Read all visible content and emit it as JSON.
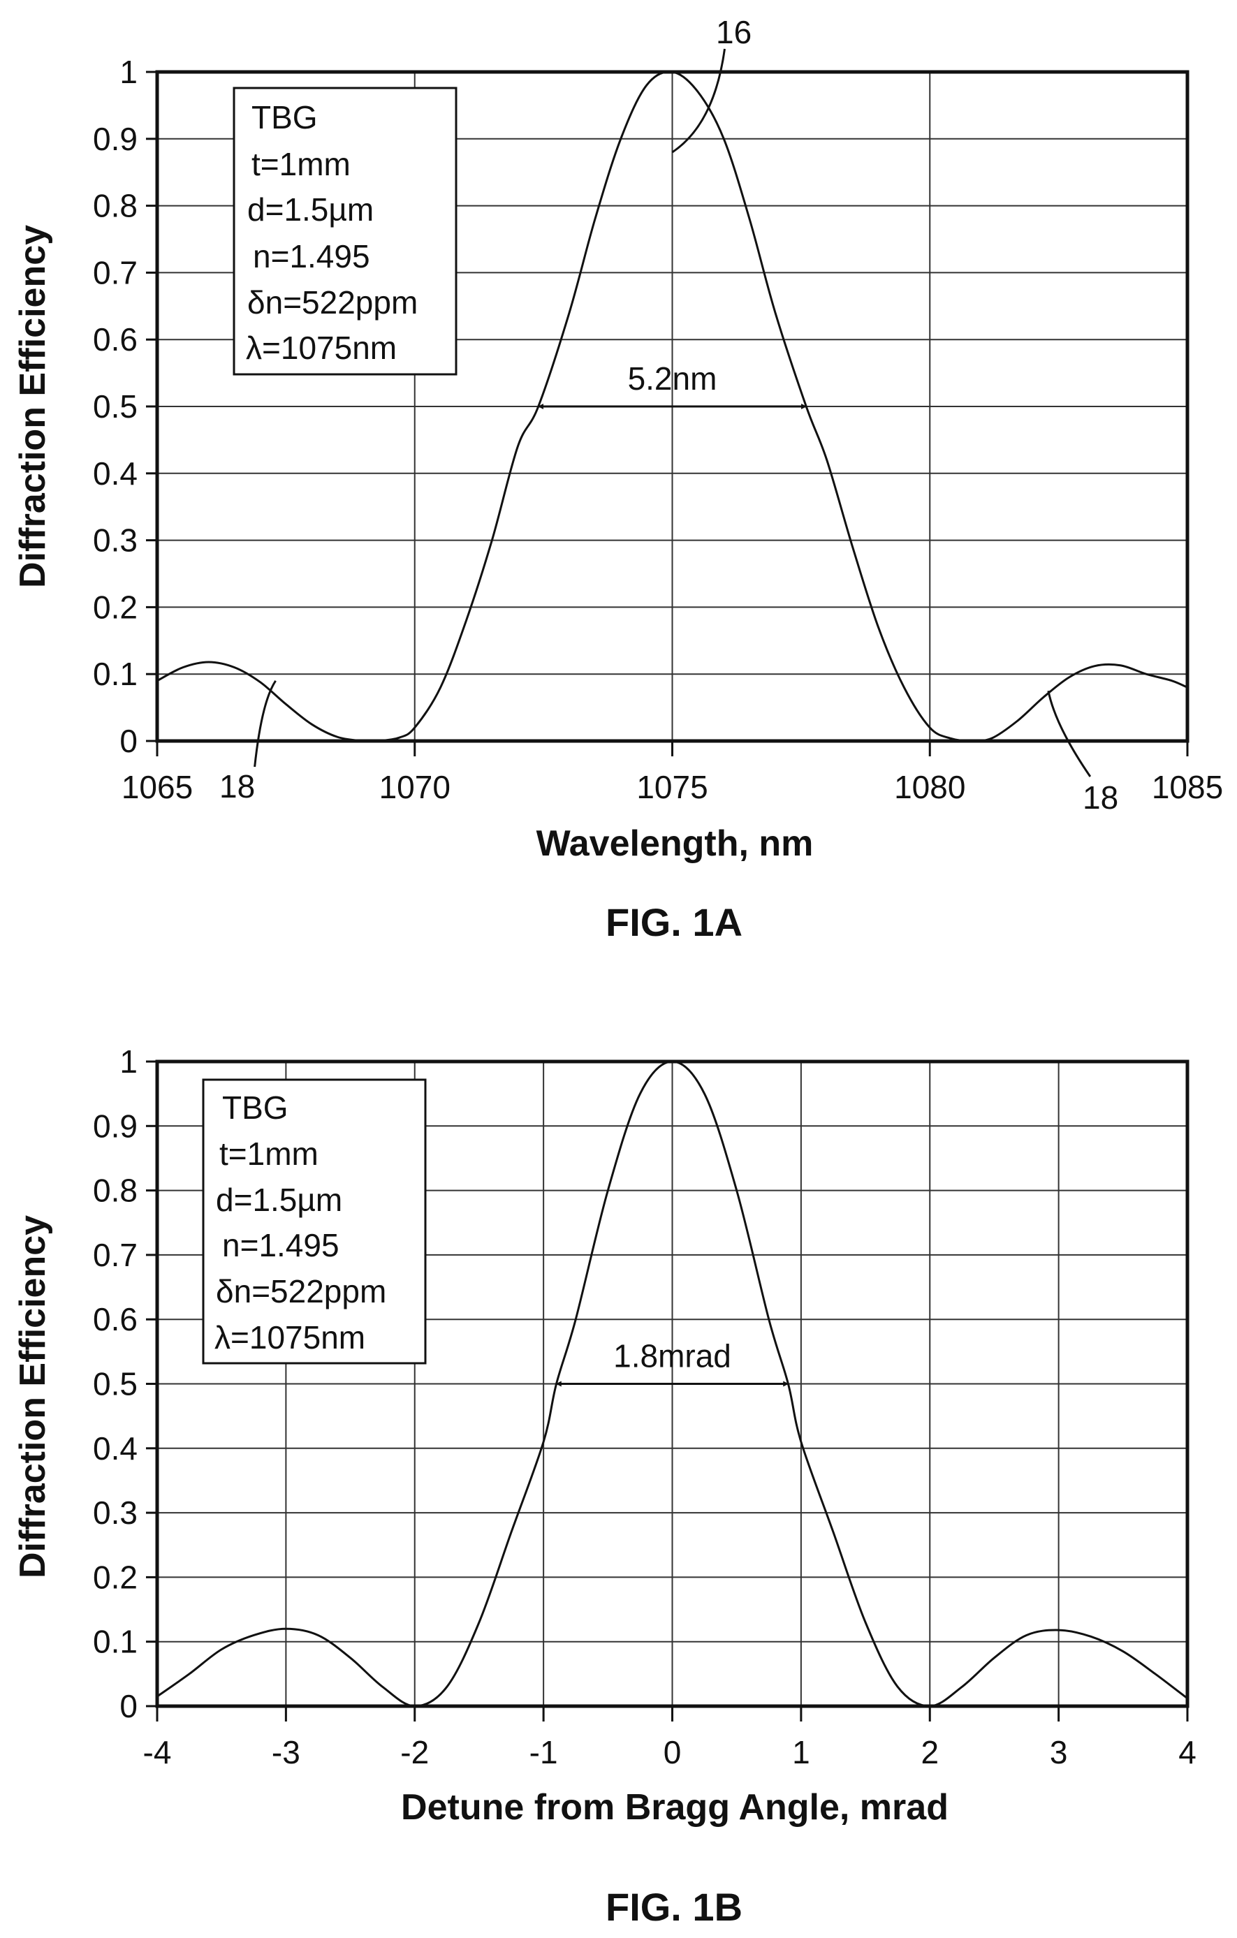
{
  "chart_data": [
    {
      "id": "fig1a",
      "type": "line",
      "figure_label": "FIG. 1A",
      "xlabel": "Wavelength, nm",
      "ylabel": "Diffraction Efficiency",
      "xlim": [
        1065,
        1085
      ],
      "ylim": [
        0,
        1
      ],
      "xticks": [
        1065,
        1070,
        1075,
        1080,
        1085
      ],
      "yticks": [
        0,
        0.1,
        0.2,
        0.3,
        0.4,
        0.5,
        0.6,
        0.7,
        0.8,
        0.9,
        1
      ],
      "grid": true,
      "legend_lines": [
        "TBG",
        "t=1mm",
        "d=1.5µm",
        "n=1.495",
        "δn=522ppm",
        "λ=1075nm"
      ],
      "series": [
        {
          "x": [
            1065,
            1065.5,
            1066,
            1066.5,
            1067,
            1067.5,
            1068,
            1068.5,
            1069,
            1069.3,
            1069.7,
            1070,
            1070.5,
            1071,
            1071.5,
            1072,
            1072.4,
            1073,
            1073.5,
            1074,
            1074.5,
            1075,
            1075.5,
            1076,
            1076.5,
            1077,
            1077.6,
            1078,
            1078.5,
            1079,
            1079.5,
            1080,
            1080.4,
            1080.8,
            1081.2,
            1081.7,
            1082.2,
            1082.7,
            1083.2,
            1083.7,
            1084.2,
            1084.7,
            1085
          ],
          "values": [
            0.09,
            0.11,
            0.118,
            0.11,
            0.088,
            0.055,
            0.025,
            0.006,
            0.0,
            0.0,
            0.005,
            0.02,
            0.08,
            0.18,
            0.3,
            0.44,
            0.5,
            0.64,
            0.78,
            0.9,
            0.98,
            1.0,
            0.97,
            0.9,
            0.78,
            0.64,
            0.5,
            0.42,
            0.29,
            0.17,
            0.08,
            0.02,
            0.004,
            0.0,
            0.004,
            0.03,
            0.065,
            0.095,
            0.112,
            0.113,
            0.1,
            0.09,
            0.08
          ]
        }
      ],
      "annotations": {
        "fwhm_label": "5.2nm",
        "fwhm_from": 1072.4,
        "fwhm_to": 1077.6,
        "fwhm_y": 0.5,
        "peak_ref": "16",
        "peak_ref_point": [
          1075,
          0.88
        ],
        "sidelobe_refs": [
          {
            "label": "18",
            "point": [
              1067.3,
              0.09
            ]
          },
          {
            "label": "18",
            "point": [
              1082.3,
              0.075
            ]
          }
        ]
      }
    },
    {
      "id": "fig1b",
      "type": "line",
      "figure_label": "FIG. 1B",
      "xlabel": "Detune from Bragg Angle, mrad",
      "ylabel": "Diffraction Efficiency",
      "xlim": [
        -4,
        4
      ],
      "ylim": [
        0,
        1
      ],
      "xticks": [
        -4,
        -3,
        -2,
        -1,
        0,
        1,
        2,
        3,
        4
      ],
      "yticks": [
        0,
        0.1,
        0.2,
        0.3,
        0.4,
        0.5,
        0.6,
        0.7,
        0.8,
        0.9,
        1
      ],
      "grid": true,
      "legend_lines": [
        "TBG",
        "t=1mm",
        "d=1.5µm",
        "n=1.495",
        "δn=522ppm",
        "λ=1075nm"
      ],
      "series": [
        {
          "x": [
            -4,
            -3.75,
            -3.5,
            -3.25,
            -3,
            -2.75,
            -2.5,
            -2.25,
            -2,
            -1.75,
            -1.5,
            -1.25,
            -1,
            -0.9,
            -0.75,
            -0.5,
            -0.25,
            0,
            0.25,
            0.5,
            0.75,
            0.9,
            1,
            1.25,
            1.5,
            1.75,
            2,
            2.25,
            2.5,
            2.75,
            3,
            3.25,
            3.5,
            3.75,
            4
          ],
          "values": [
            0.015,
            0.05,
            0.088,
            0.11,
            0.12,
            0.11,
            0.075,
            0.03,
            0.0,
            0.03,
            0.13,
            0.27,
            0.41,
            0.5,
            0.6,
            0.8,
            0.95,
            1.0,
            0.95,
            0.8,
            0.6,
            0.5,
            0.41,
            0.27,
            0.13,
            0.03,
            0.0,
            0.03,
            0.075,
            0.11,
            0.118,
            0.108,
            0.085,
            0.05,
            0.012
          ]
        }
      ],
      "annotations": {
        "fwhm_label": "1.8mrad",
        "fwhm_from": -0.9,
        "fwhm_to": 0.9,
        "fwhm_y": 0.5
      }
    }
  ]
}
